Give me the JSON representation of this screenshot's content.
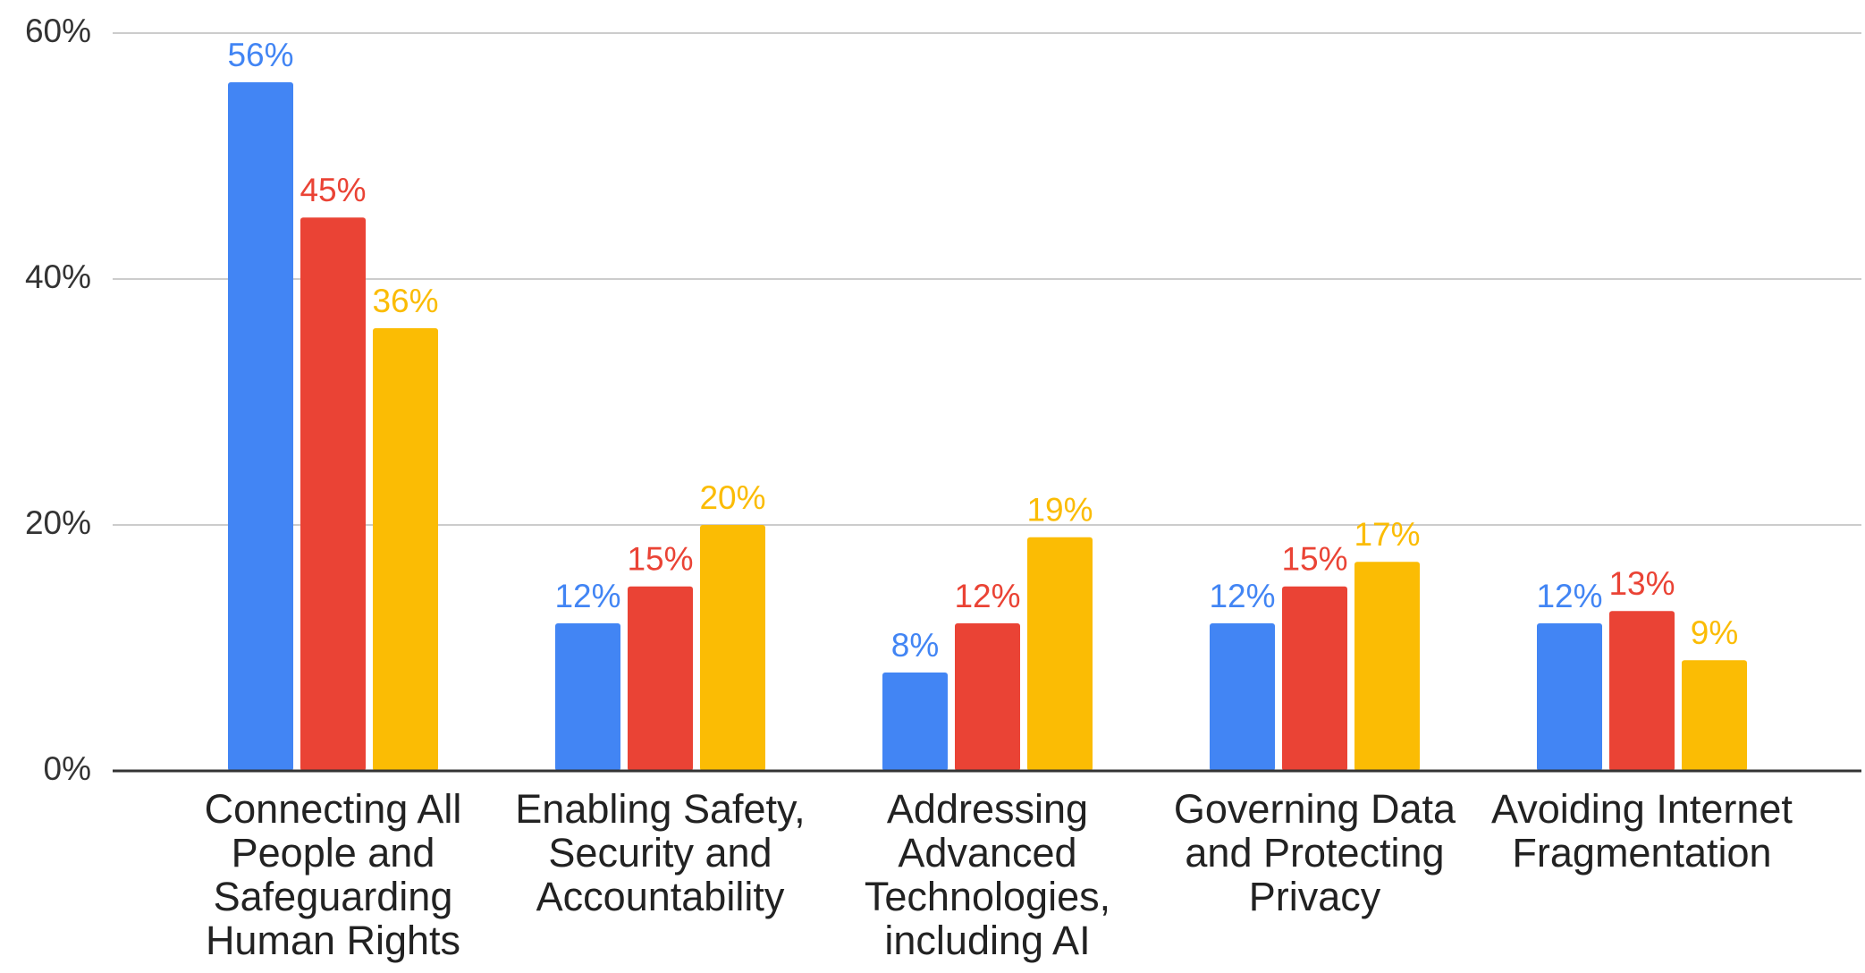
{
  "chart_data": {
    "type": "bar",
    "categories": [
      "Connecting All People and Safeguarding Human Rights",
      "Enabling Safety, Security and Accountability",
      "Addressing Advanced Technologies, including AI",
      "Governing Data and Protecting Privacy",
      "Avoiding Internet Fragmentation"
    ],
    "series": [
      {
        "color": "#4285f4",
        "values": [
          56,
          12,
          8,
          12,
          12
        ],
        "value_labels": [
          "56%",
          "12%",
          "8%",
          "12%",
          "12%"
        ]
      },
      {
        "color": "#ea4335",
        "values": [
          45,
          15,
          12,
          15,
          13
        ],
        "value_labels": [
          "45%",
          "15%",
          "12%",
          "15%",
          "13%"
        ]
      },
      {
        "color": "#fbbc04",
        "values": [
          36,
          20,
          19,
          17,
          9
        ],
        "value_labels": [
          "36%",
          "20%",
          "19%",
          "17%",
          "9%"
        ]
      }
    ],
    "ylim": [
      0,
      60
    ],
    "yticks": [
      {
        "value": 0,
        "label": "0%"
      },
      {
        "value": 20,
        "label": "20%"
      },
      {
        "value": 40,
        "label": "40%"
      },
      {
        "value": 60,
        "label": "60%"
      }
    ],
    "grid": true
  }
}
